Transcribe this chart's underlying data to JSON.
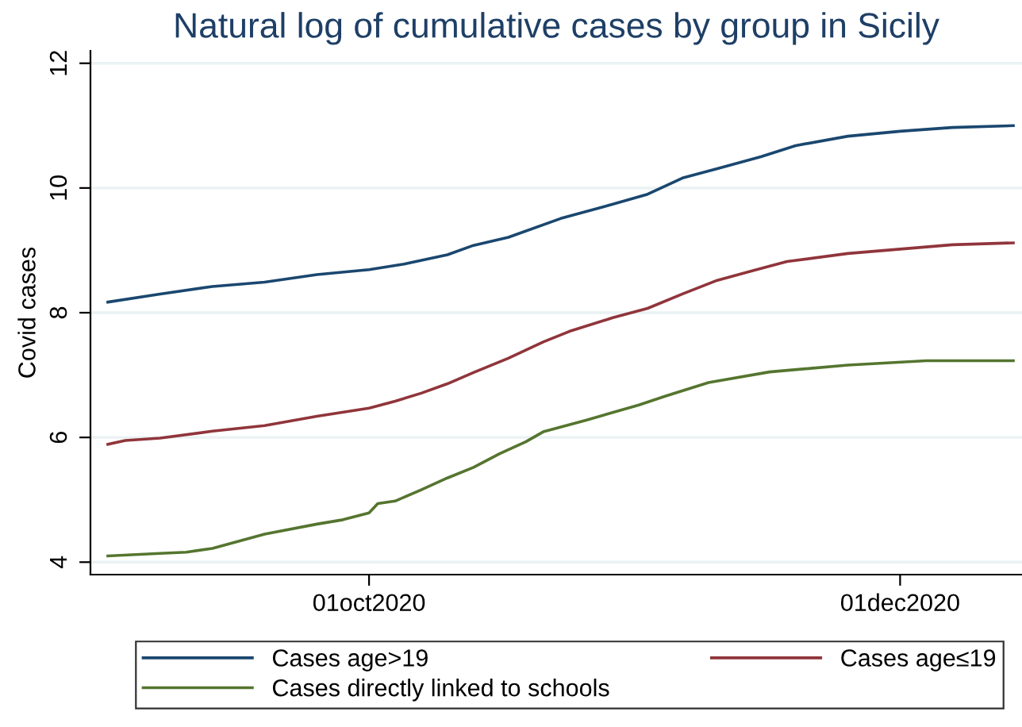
{
  "chart_data": {
    "type": "line",
    "title": "Natural log of cumulative cases by group in Sicily",
    "ylabel": "Covid cases",
    "xlim": [
      "2020-08-30",
      "2020-12-15"
    ],
    "xticks": [
      {
        "value": "2020-10-01",
        "label": "01oct2020"
      },
      {
        "value": "2020-12-01",
        "label": "01dec2020"
      }
    ],
    "ylim": [
      3.8,
      12.2
    ],
    "yticks": [
      4,
      6,
      8,
      10,
      12
    ],
    "grid": "y",
    "legend": "bottom",
    "marker": "none",
    "line_style": "solid",
    "series": [
      {
        "name": "Cases age>19",
        "color": "#1a476f",
        "x": [
          "2020-09-01",
          "2020-09-07",
          "2020-09-13",
          "2020-09-19",
          "2020-09-25",
          "2020-10-01",
          "2020-10-05",
          "2020-10-10",
          "2020-10-13",
          "2020-10-17",
          "2020-10-23",
          "2020-10-29",
          "2020-11-02",
          "2020-11-06",
          "2020-11-10",
          "2020-11-15",
          "2020-11-19",
          "2020-11-25",
          "2020-12-01",
          "2020-12-07",
          "2020-12-14"
        ],
        "values": [
          8.17,
          8.3,
          8.42,
          8.49,
          8.61,
          8.69,
          8.78,
          8.93,
          9.08,
          9.21,
          9.51,
          9.74,
          9.9,
          10.16,
          10.31,
          10.5,
          10.68,
          10.83,
          10.91,
          10.97,
          11.0
        ]
      },
      {
        "name": "Cases age≤19",
        "color": "#90353b",
        "x": [
          "2020-09-01",
          "2020-09-03",
          "2020-09-07",
          "2020-09-13",
          "2020-09-19",
          "2020-09-25",
          "2020-10-01",
          "2020-10-04",
          "2020-10-07",
          "2020-10-10",
          "2020-10-13",
          "2020-10-17",
          "2020-10-21",
          "2020-10-24",
          "2020-10-29",
          "2020-11-02",
          "2020-11-06",
          "2020-11-10",
          "2020-11-14",
          "2020-11-18",
          "2020-11-25",
          "2020-12-01",
          "2020-12-07",
          "2020-12-14"
        ],
        "values": [
          5.89,
          5.95,
          5.99,
          6.1,
          6.19,
          6.34,
          6.47,
          6.58,
          6.71,
          6.86,
          7.04,
          7.27,
          7.53,
          7.7,
          7.92,
          8.07,
          8.3,
          8.52,
          8.67,
          8.82,
          8.95,
          9.02,
          9.09,
          9.12
        ]
      },
      {
        "name": "Cases directly linked to schools",
        "color": "#55752f",
        "x": [
          "2020-09-01",
          "2020-09-07",
          "2020-09-10",
          "2020-09-13",
          "2020-09-19",
          "2020-09-25",
          "2020-09-28",
          "2020-10-01",
          "2020-10-02",
          "2020-10-04",
          "2020-10-07",
          "2020-10-10",
          "2020-10-13",
          "2020-10-16",
          "2020-10-19",
          "2020-10-21",
          "2020-10-26",
          "2020-11-01",
          "2020-11-04",
          "2020-11-09",
          "2020-11-16",
          "2020-11-25",
          "2020-12-04",
          "2020-12-14"
        ],
        "values": [
          4.1,
          4.14,
          4.16,
          4.22,
          4.45,
          4.61,
          4.68,
          4.79,
          4.94,
          4.98,
          5.16,
          5.35,
          5.52,
          5.74,
          5.93,
          6.09,
          6.28,
          6.52,
          6.66,
          6.88,
          7.05,
          7.16,
          7.23,
          7.23
        ]
      }
    ]
  }
}
